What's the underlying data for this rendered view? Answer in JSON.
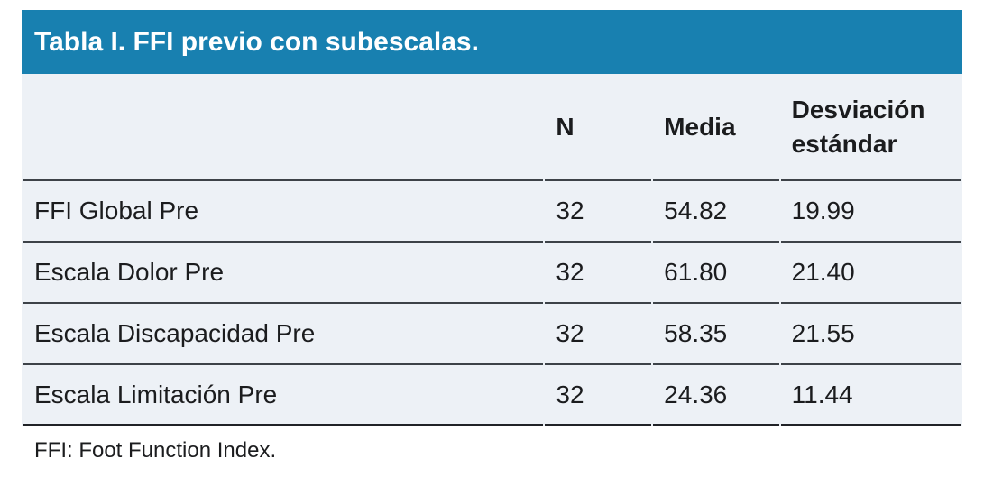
{
  "figure": {
    "title": "Tabla I. FFI previo con subescalas.",
    "columns": [
      "",
      "N",
      "Media",
      "Desviación estándar"
    ],
    "rows": [
      {
        "label": "FFI Global Pre",
        "n": "32",
        "media": "54.82",
        "sd": "19.99"
      },
      {
        "label": "Escala Dolor Pre",
        "n": "32",
        "media": "61.80",
        "sd": "21.40"
      },
      {
        "label": "Escala Discapacidad Pre",
        "n": "32",
        "media": "58.35",
        "sd": "21.55"
      },
      {
        "label": "Escala Limitación Pre",
        "n": "32",
        "media": "24.36",
        "sd": "11.44"
      }
    ],
    "footnote": "FFI: Foot Function Index."
  },
  "chart_data": {
    "type": "table",
    "title": "Tabla I. FFI previo con subescalas.",
    "columns": [
      "",
      "N",
      "Media",
      "Desviación estándar"
    ],
    "rows": [
      [
        "FFI Global Pre",
        32,
        54.82,
        19.99
      ],
      [
        "Escala Dolor Pre",
        32,
        61.8,
        21.4
      ],
      [
        "Escala Discapacidad Pre",
        32,
        58.35,
        21.55
      ],
      [
        "Escala Limitación Pre",
        32,
        24.36,
        11.44
      ]
    ],
    "footnote": "FFI: Foot Function Index."
  },
  "colors": {
    "title_bg": "#1880B0",
    "title_text": "#FFFFFF",
    "body_bg": "#EDF1F6",
    "divider": "#3D4248",
    "text": "#1B1C1E",
    "page_bg": "#FFFFFF"
  }
}
